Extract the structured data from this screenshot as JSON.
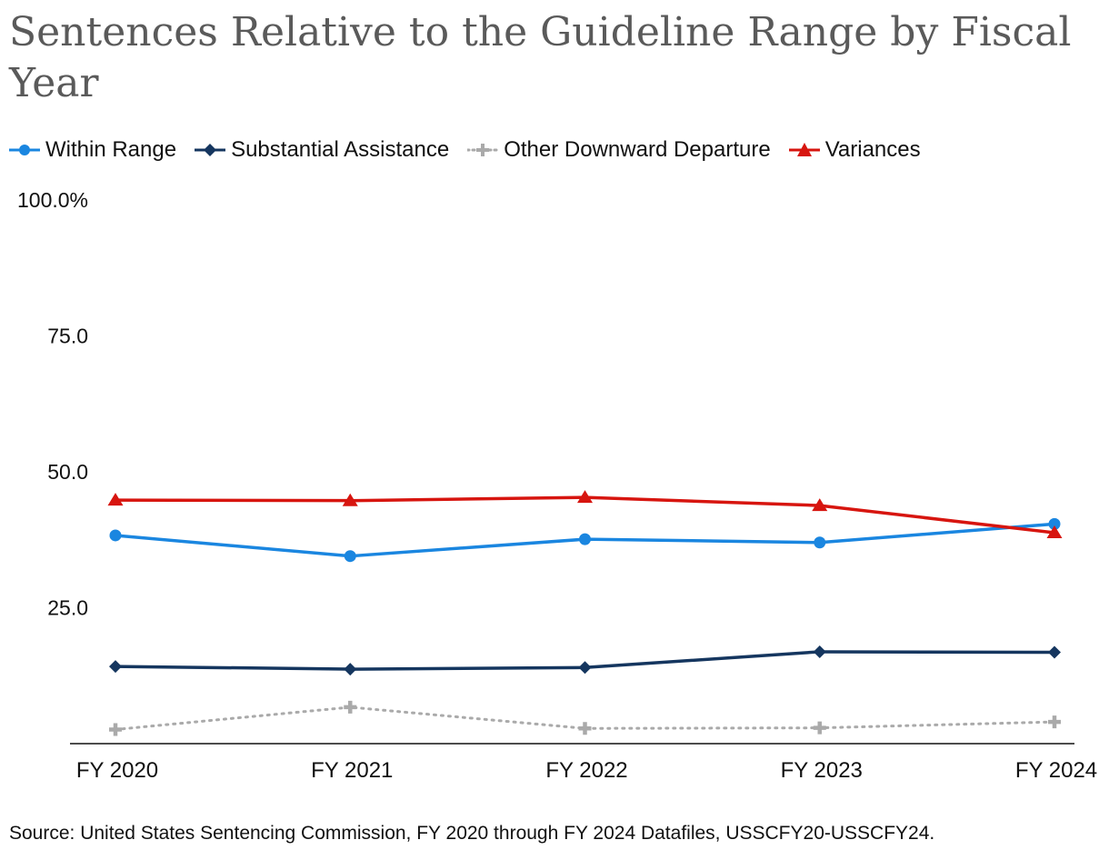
{
  "title": "Sentences Relative to the Guideline Range by Fiscal Year",
  "source": "Source: United States Sentencing Commission, FY 2020 through FY 2024 Datafiles, USSCFY20-USSCFY24.",
  "colors": {
    "within_range": "#1a86e0",
    "substantial_assistance": "#15365f",
    "other_downward_departure": "#aaaaaa",
    "variances": "#d7150f"
  },
  "chart_data": {
    "type": "line",
    "title": "Sentences Relative to the Guideline Range by Fiscal Year",
    "xlabel": "",
    "ylabel": "",
    "categories": [
      "FY 2020",
      "FY 2021",
      "FY 2022",
      "FY 2023",
      "FY 2024"
    ],
    "y_ticks": [
      {
        "value": 100,
        "label": "100.0%"
      },
      {
        "value": 75,
        "label": "75.0"
      },
      {
        "value": 50,
        "label": "50.0"
      },
      {
        "value": 25,
        "label": "25.0"
      }
    ],
    "ylim": [
      0,
      100
    ],
    "grid": false,
    "legend_position": "top-left",
    "series": [
      {
        "key": "within_range",
        "name": "Within Range",
        "marker": "circle",
        "line": "solid",
        "values": [
          38.3,
          34.5,
          37.6,
          37.0,
          40.4
        ]
      },
      {
        "key": "substantial_assistance",
        "name": "Substantial Assistance",
        "marker": "diamond",
        "line": "solid",
        "values": [
          14.2,
          13.7,
          14.0,
          16.9,
          16.8
        ]
      },
      {
        "key": "other_downward_departure",
        "name": "Other Downward Departure",
        "marker": "plus",
        "line": "dotted",
        "values": [
          2.6,
          6.7,
          2.8,
          2.9,
          4.0
        ]
      },
      {
        "key": "variances",
        "name": "Variances",
        "marker": "triangle",
        "line": "solid",
        "values": [
          44.8,
          44.7,
          45.3,
          43.8,
          38.8
        ]
      }
    ]
  }
}
